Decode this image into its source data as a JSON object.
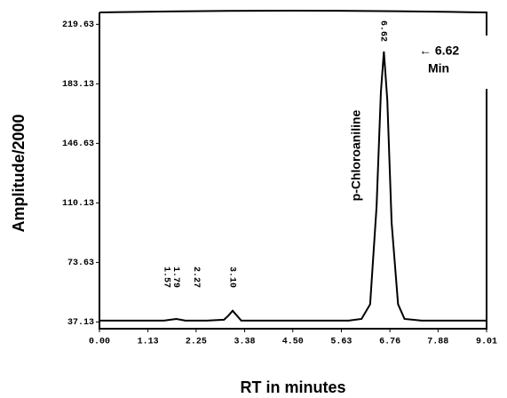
{
  "chart_data": {
    "type": "line",
    "xlabel": "RT in minutes",
    "ylabel": "Amplitude/2000",
    "x": [
      0,
      0.5,
      1.0,
      1.5,
      1.79,
      2.0,
      2.5,
      2.9,
      3.0,
      3.1,
      3.2,
      3.3,
      3.5,
      4.0,
      5.0,
      5.8,
      6.1,
      6.3,
      6.45,
      6.55,
      6.62,
      6.7,
      6.8,
      6.95,
      7.1,
      7.5,
      8.0,
      8.5,
      9.0
    ],
    "values": [
      38,
      38,
      38,
      38,
      39,
      38,
      38,
      38.5,
      41,
      44,
      41,
      38,
      38,
      38,
      38,
      38,
      39,
      48,
      108,
      178,
      203,
      173,
      98,
      48,
      39,
      38,
      38,
      38,
      38
    ],
    "color": "#000000",
    "xlim": [
      0,
      9.01
    ],
    "ylim": [
      33,
      228
    ],
    "xticks": [
      {
        "value": 0,
        "label": "0.00"
      },
      1.13,
      2.25,
      3.38,
      {
        "value": 4.5,
        "label": "4.50"
      },
      5.63,
      6.76,
      7.88,
      9.01
    ],
    "yticks": [
      37.13,
      73.63,
      110.13,
      146.63,
      183.13,
      219.63
    ],
    "peak_labels": [
      1.57,
      1.79,
      2.27,
      {
        "value": 3.1,
        "label": "3.10"
      },
      6.62
    ],
    "peak_name": "p-Chloroaniline",
    "annotation": [
      "← 6.62",
      "Min"
    ]
  }
}
